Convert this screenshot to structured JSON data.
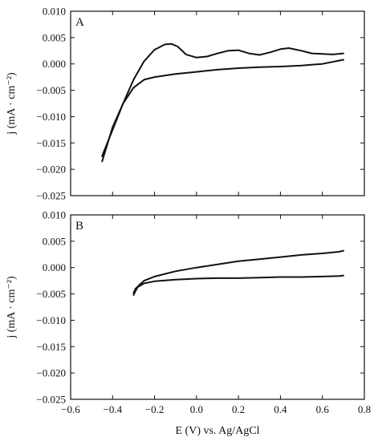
{
  "chart_data": [
    {
      "type": "line",
      "panel_label": "A",
      "xlabel": "",
      "ylabel": "j (mA · cm⁻²)",
      "xlim": [
        -0.6,
        0.8
      ],
      "ylim": [
        -0.025,
        0.01
      ],
      "x_ticks": [
        -0.6,
        -0.4,
        -0.2,
        0.0,
        0.2,
        0.4,
        0.6,
        0.8
      ],
      "y_ticks": [
        0.01,
        0.005,
        0.0,
        -0.005,
        -0.01,
        -0.015,
        -0.02,
        -0.025
      ],
      "y_tick_labels": [
        "0.010",
        "0.005",
        "0.000",
        "−0.005",
        "−0.010",
        "−0.015",
        "−0.020",
        "−0.025"
      ],
      "grid": false,
      "series": [
        {
          "x": [
            -0.45,
            -0.4,
            -0.35,
            -0.3,
            -0.25,
            -0.2,
            -0.15,
            -0.12,
            -0.09,
            -0.05,
            0.0,
            0.05,
            0.1,
            0.15,
            0.2,
            0.25,
            0.3,
            0.35,
            0.4,
            0.44,
            0.5,
            0.55,
            0.6,
            0.65,
            0.7
          ],
          "y": [
            -0.0175,
            -0.0125,
            -0.0075,
            -0.003,
            0.0005,
            0.0027,
            0.0037,
            0.0038,
            0.0033,
            0.0018,
            0.0012,
            0.0014,
            0.002,
            0.0025,
            0.0026,
            0.002,
            0.0017,
            0.0022,
            0.0028,
            0.003,
            0.0025,
            0.002,
            0.0019,
            0.0018,
            0.002
          ]
        },
        {
          "x": [
            0.7,
            0.6,
            0.5,
            0.4,
            0.3,
            0.2,
            0.1,
            0.0,
            -0.1,
            -0.2,
            -0.25,
            -0.3,
            -0.35,
            -0.4,
            -0.45
          ],
          "y": [
            0.0008,
            0.0,
            -0.0003,
            -0.0005,
            -0.0006,
            -0.0008,
            -0.0011,
            -0.0015,
            -0.0019,
            -0.0025,
            -0.003,
            -0.0045,
            -0.0075,
            -0.012,
            -0.0185
          ]
        }
      ]
    },
    {
      "type": "line",
      "panel_label": "B",
      "xlabel": "E (V) vs. Ag/AgCl",
      "ylabel": "j (mA · cm⁻²)",
      "xlim": [
        -0.6,
        0.8
      ],
      "ylim": [
        -0.025,
        0.01
      ],
      "x_ticks": [
        -0.6,
        -0.4,
        -0.2,
        0.0,
        0.2,
        0.4,
        0.6,
        0.8
      ],
      "x_tick_labels": [
        "−0.6",
        "−0.4",
        "−0.2",
        "0.0",
        "0.2",
        "0.4",
        "0.6",
        "0.8"
      ],
      "y_ticks": [
        0.01,
        0.005,
        0.0,
        -0.005,
        -0.01,
        -0.015,
        -0.02,
        -0.025
      ],
      "y_tick_labels": [
        "0.010",
        "0.005",
        "0.000",
        "−0.005",
        "−0.010",
        "−0.015",
        "−0.020",
        "−0.025"
      ],
      "grid": false,
      "series": [
        {
          "x": [
            -0.3,
            -0.29,
            -0.27,
            -0.25,
            -0.2,
            -0.1,
            0.0,
            0.1,
            0.2,
            0.3,
            0.4,
            0.5,
            0.6,
            0.68,
            0.7
          ],
          "y": [
            -0.0048,
            -0.004,
            -0.0032,
            -0.0025,
            -0.0017,
            -0.0007,
            0.0,
            0.0006,
            0.0012,
            0.0016,
            0.002,
            0.0024,
            0.0027,
            0.003,
            0.0032
          ]
        },
        {
          "x": [
            0.7,
            0.68,
            0.6,
            0.5,
            0.4,
            0.3,
            0.2,
            0.1,
            0.0,
            -0.1,
            -0.2,
            -0.25,
            -0.28,
            -0.29,
            -0.3
          ],
          "y": [
            -0.0015,
            -0.0016,
            -0.0017,
            -0.0018,
            -0.0018,
            -0.0019,
            -0.002,
            -0.002,
            -0.0021,
            -0.0023,
            -0.0026,
            -0.003,
            -0.0037,
            -0.0044,
            -0.0052
          ]
        }
      ]
    }
  ]
}
